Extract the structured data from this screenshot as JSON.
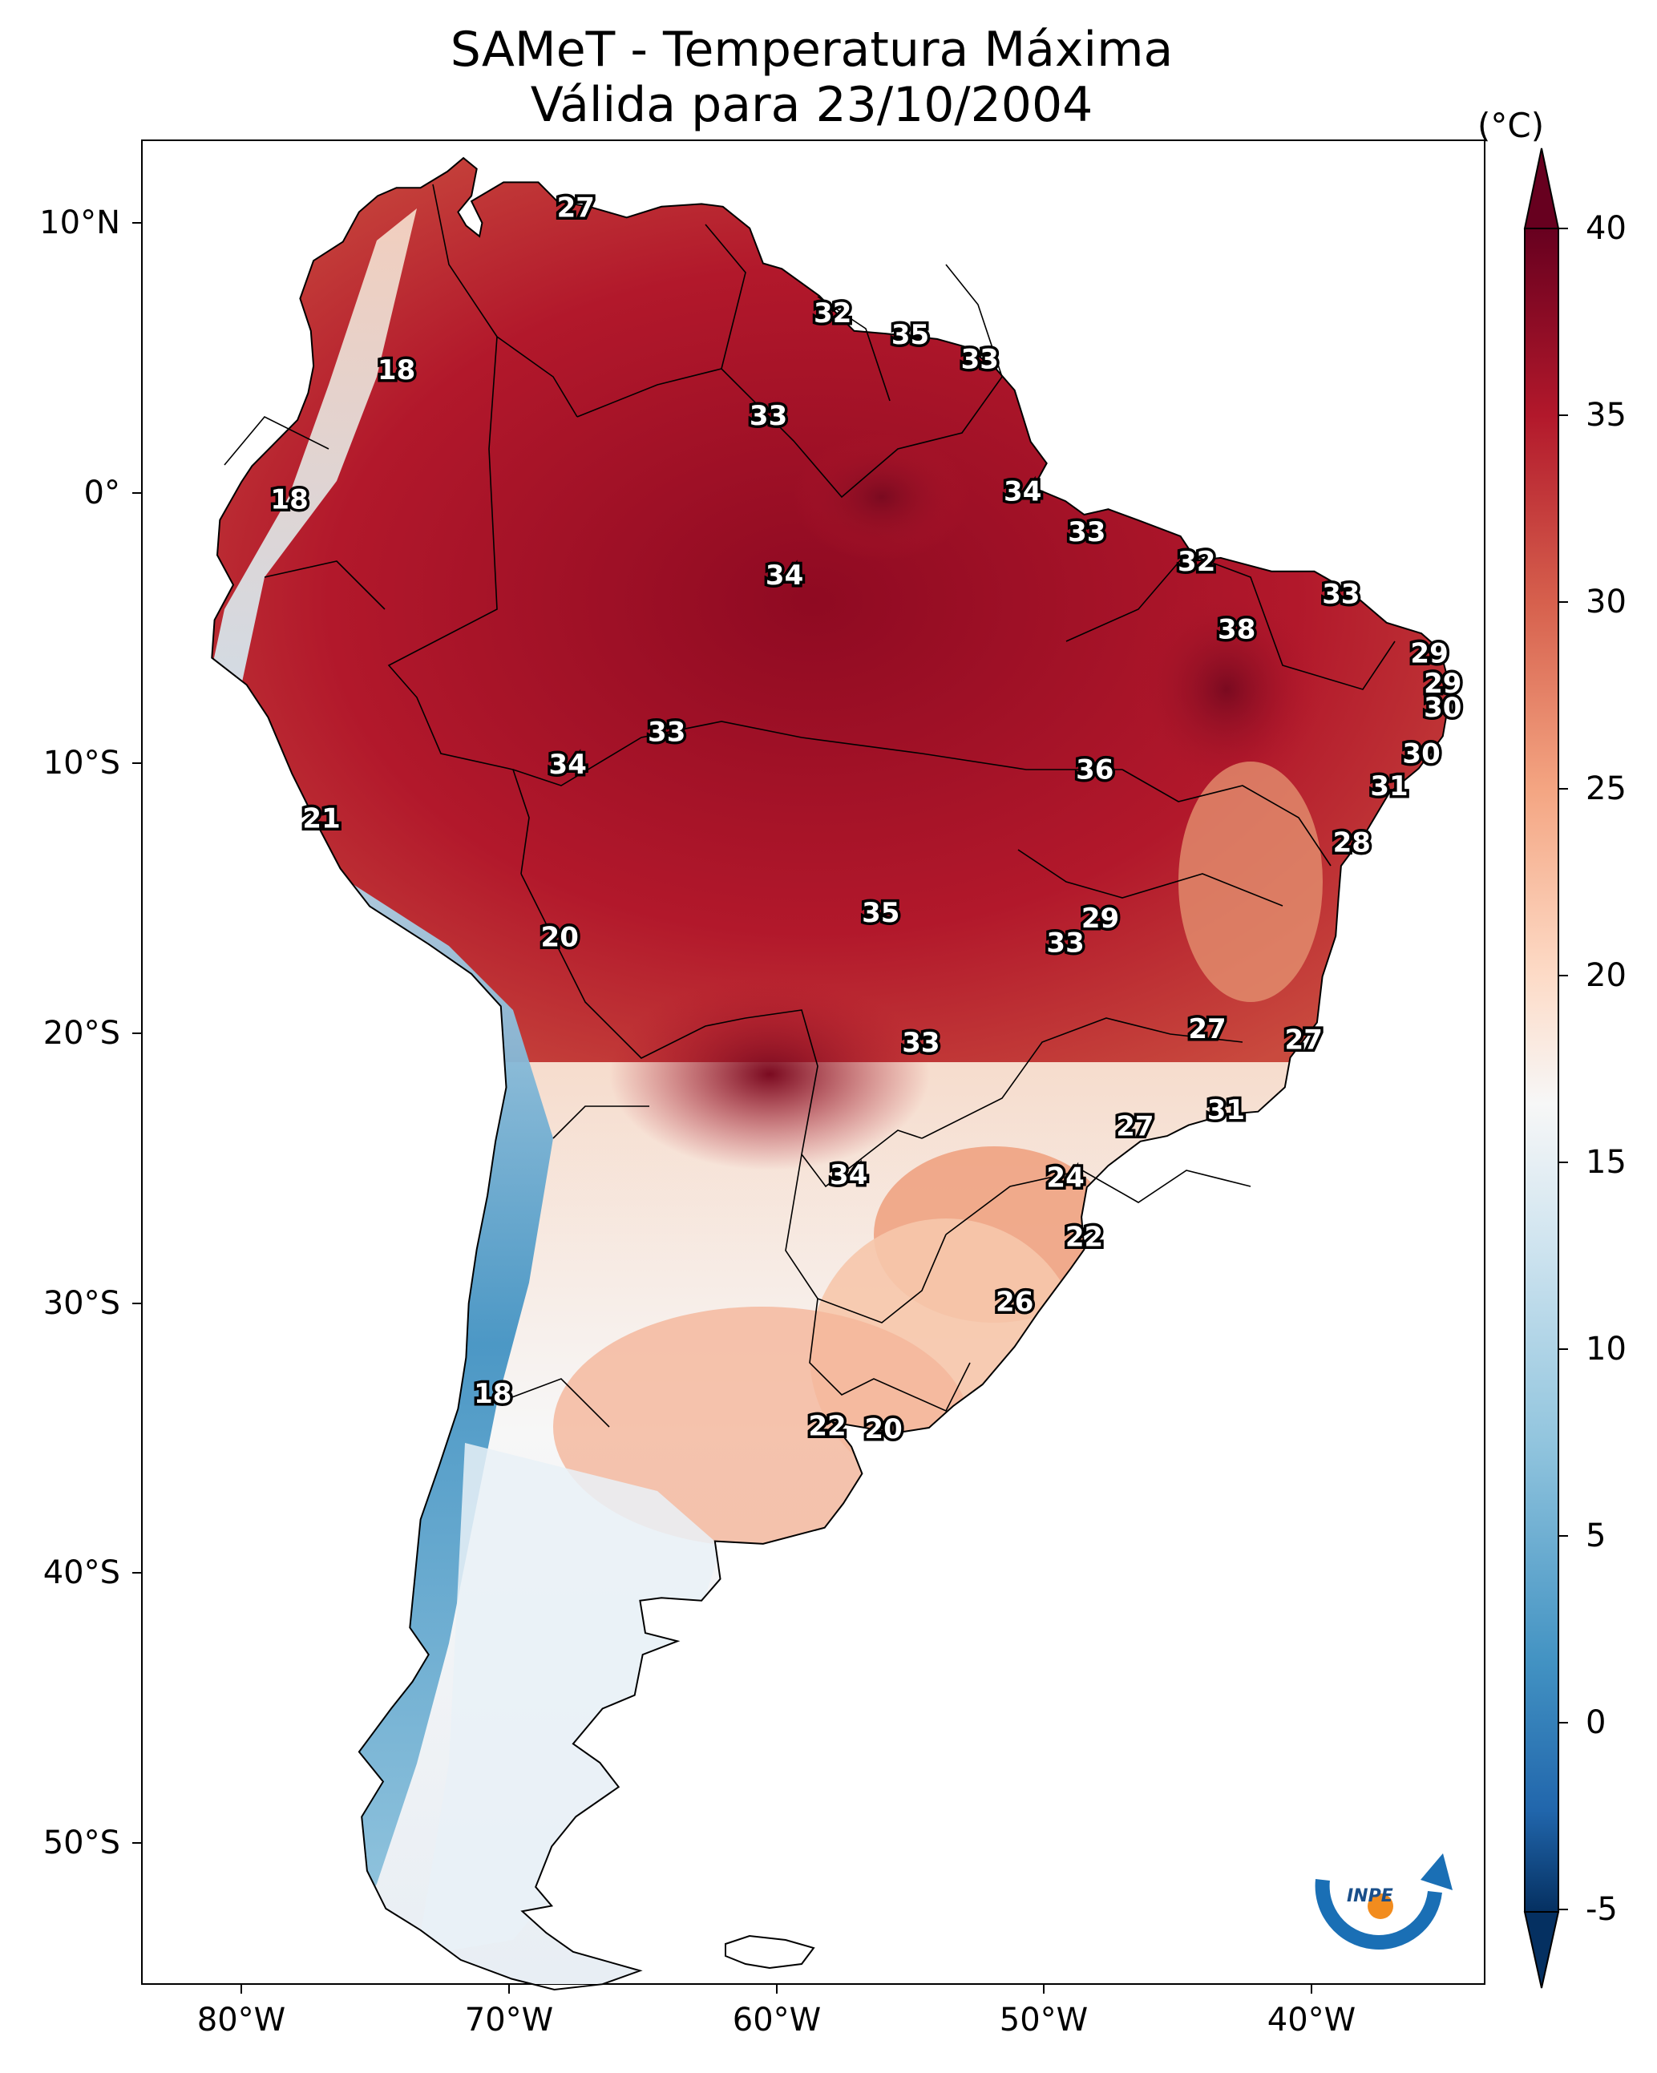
{
  "title": {
    "line1": "SAMeT - Temperatura Máxima",
    "line2": "Válida para 23/10/2004"
  },
  "axes": {
    "lat_labels": [
      "10°N",
      "0°",
      "10°S",
      "20°S",
      "30°S",
      "40°S",
      "50°S"
    ],
    "lon_labels": [
      "80°W",
      "70°W",
      "60°W",
      "50°W",
      "40°W"
    ]
  },
  "colorbar": {
    "units": "(°C)",
    "ticks": [
      "40",
      "35",
      "30",
      "25",
      "20",
      "15",
      "10",
      "5",
      "0",
      "-5"
    ],
    "colors": {
      "v40": "#67001f",
      "v35": "#b2182b",
      "v30": "#d6604d",
      "v25": "#f4a582",
      "v20": "#fddbc7",
      "v15": "#f7f7f7",
      "v10": "#d1e5f0",
      "v5": "#92c5de",
      "v0": "#4393c3",
      "vm5": "#053061"
    }
  },
  "station_labels": [
    {
      "text": "27",
      "lon": -67.5,
      "lat": 10.5
    },
    {
      "text": "18",
      "lon": -74.2,
      "lat": 4.5
    },
    {
      "text": "32",
      "lon": -57.9,
      "lat": 6.6
    },
    {
      "text": "35",
      "lon": -55.0,
      "lat": 5.8
    },
    {
      "text": "33",
      "lon": -52.4,
      "lat": 4.9
    },
    {
      "text": "33",
      "lon": -60.3,
      "lat": 2.8
    },
    {
      "text": "18",
      "lon": -78.2,
      "lat": -0.3
    },
    {
      "text": "34",
      "lon": -50.8,
      "lat": 0.0
    },
    {
      "text": "33",
      "lon": -48.4,
      "lat": -1.5
    },
    {
      "text": "34",
      "lon": -59.7,
      "lat": -3.1
    },
    {
      "text": "32",
      "lon": -44.3,
      "lat": -2.6
    },
    {
      "text": "33",
      "lon": -38.9,
      "lat": -3.8
    },
    {
      "text": "38",
      "lon": -42.8,
      "lat": -5.1
    },
    {
      "text": "29",
      "lon": -35.6,
      "lat": -6.0
    },
    {
      "text": "29",
      "lon": -35.1,
      "lat": -7.1
    },
    {
      "text": "30",
      "lon": -35.1,
      "lat": -8.0
    },
    {
      "text": "33",
      "lon": -64.1,
      "lat": -8.9
    },
    {
      "text": "30",
      "lon": -35.9,
      "lat": -9.7
    },
    {
      "text": "34",
      "lon": -67.8,
      "lat": -10.1
    },
    {
      "text": "36",
      "lon": -48.1,
      "lat": -10.3
    },
    {
      "text": "31",
      "lon": -37.1,
      "lat": -10.9
    },
    {
      "text": "21",
      "lon": -77.0,
      "lat": -12.1
    },
    {
      "text": "28",
      "lon": -38.5,
      "lat": -13.0
    },
    {
      "text": "35",
      "lon": -56.1,
      "lat": -15.6
    },
    {
      "text": "29",
      "lon": -47.9,
      "lat": -15.8
    },
    {
      "text": "20",
      "lon": -68.1,
      "lat": -16.5
    },
    {
      "text": "33",
      "lon": -49.2,
      "lat": -16.7
    },
    {
      "text": "27",
      "lon": -43.9,
      "lat": -19.9
    },
    {
      "text": "27",
      "lon": -40.3,
      "lat": -20.3
    },
    {
      "text": "33",
      "lon": -54.6,
      "lat": -20.4
    },
    {
      "text": "31",
      "lon": -43.2,
      "lat": -22.9
    },
    {
      "text": "27",
      "lon": -46.6,
      "lat": -23.5
    },
    {
      "text": "34",
      "lon": -57.3,
      "lat": -25.3
    },
    {
      "text": "24",
      "lon": -49.2,
      "lat": -25.4
    },
    {
      "text": "22",
      "lon": -48.5,
      "lat": -27.6
    },
    {
      "text": "26",
      "lon": -51.1,
      "lat": -30.0
    },
    {
      "text": "18",
      "lon": -70.6,
      "lat": -33.4
    },
    {
      "text": "22",
      "lon": -58.1,
      "lat": -34.6
    },
    {
      "text": "20",
      "lon": -56.0,
      "lat": -34.7
    }
  ],
  "logo": {
    "text": "INPE"
  }
}
